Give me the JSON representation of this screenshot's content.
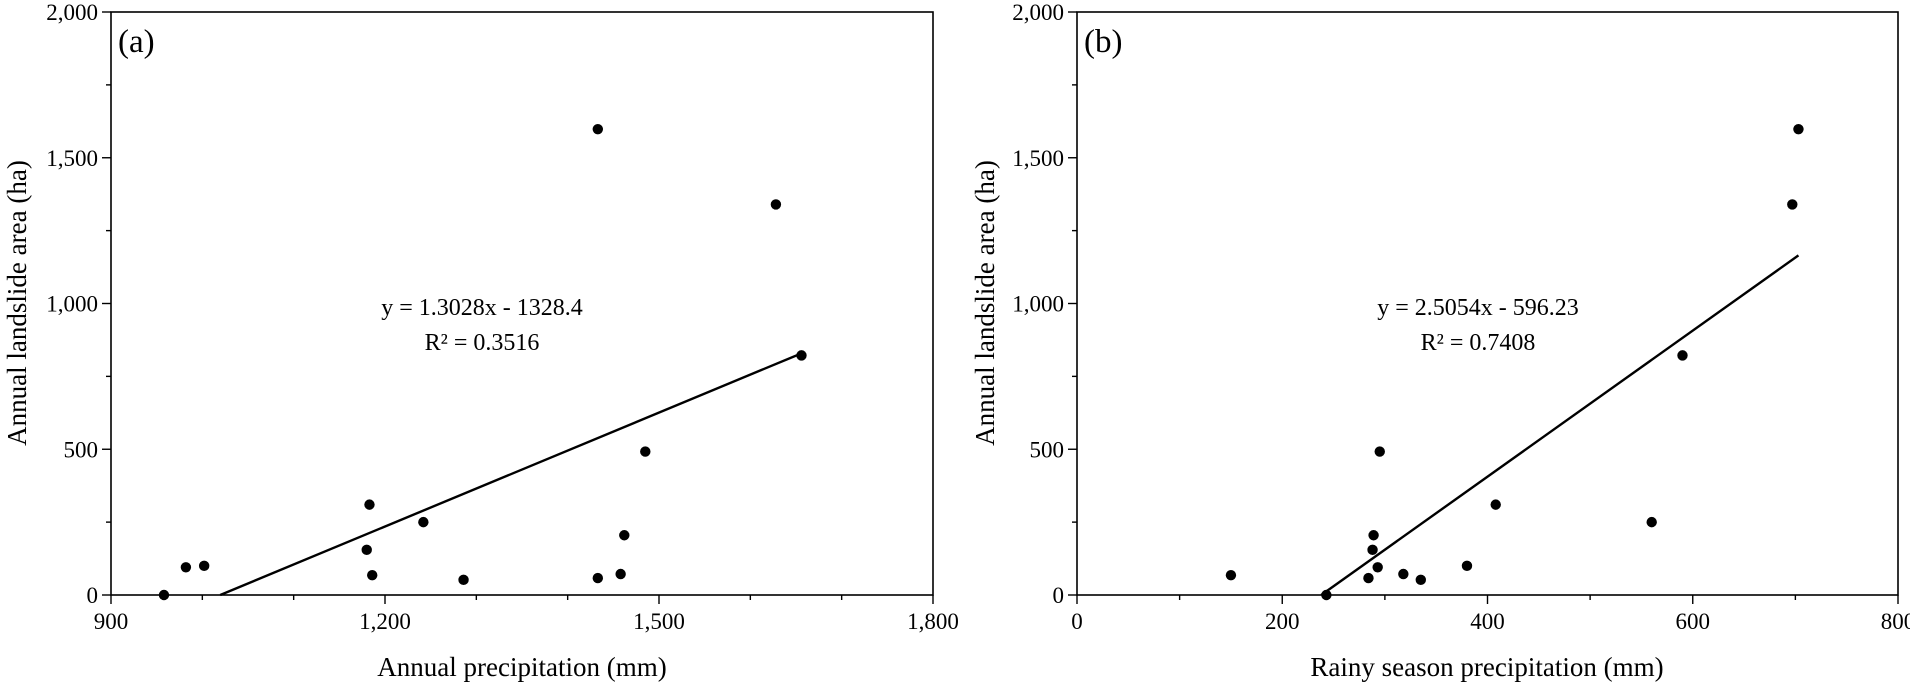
{
  "chart_data": [
    {
      "type": "scatter",
      "panel_label": "(a)",
      "xlabel": "Annual precipitation (mm)",
      "ylabel": "Annual landslide area (ha)",
      "xlim": [
        900,
        1800
      ],
      "ylim": [
        0,
        2000
      ],
      "x_ticks": [
        900,
        1200,
        1500,
        1800
      ],
      "x_tick_labels": [
        "900",
        "1,200",
        "1,500",
        "1,800"
      ],
      "x_minor_step": 100,
      "y_ticks": [
        0,
        500,
        1000,
        1500,
        2000
      ],
      "y_tick_labels": [
        "0",
        "500",
        "1,000",
        "1,500",
        "2,000"
      ],
      "points": [
        {
          "x": 958,
          "y": 0
        },
        {
          "x": 982,
          "y": 95
        },
        {
          "x": 1002,
          "y": 100
        },
        {
          "x": 1183,
          "y": 310
        },
        {
          "x": 1180,
          "y": 155
        },
        {
          "x": 1186,
          "y": 68
        },
        {
          "x": 1242,
          "y": 250
        },
        {
          "x": 1286,
          "y": 52
        },
        {
          "x": 1433,
          "y": 1598
        },
        {
          "x": 1433,
          "y": 58
        },
        {
          "x": 1458,
          "y": 72
        },
        {
          "x": 1462,
          "y": 205
        },
        {
          "x": 1485,
          "y": 492
        },
        {
          "x": 1628,
          "y": 1340
        },
        {
          "x": 1656,
          "y": 822
        }
      ],
      "trendline": {
        "slope": 1.3028,
        "intercept": -1328.4,
        "x_range": [
          1019.6,
          1656
        ]
      },
      "equation_text": "y = 1.3028x - 1328.4",
      "r2_text": "R² = 0.3516"
    },
    {
      "type": "scatter",
      "panel_label": "(b)",
      "xlabel": "Rainy season precipitation (mm)",
      "ylabel": "Annual landslide area (ha)",
      "xlim": [
        0,
        800
      ],
      "ylim": [
        0,
        2000
      ],
      "x_ticks": [
        0,
        200,
        400,
        600,
        800
      ],
      "x_tick_labels": [
        "0",
        "200",
        "400",
        "600",
        "800"
      ],
      "x_minor_step": 100,
      "y_ticks": [
        0,
        500,
        1000,
        1500,
        2000
      ],
      "y_tick_labels": [
        "0",
        "500",
        "1,000",
        "1,500",
        "2,000"
      ],
      "points": [
        {
          "x": 150,
          "y": 68
        },
        {
          "x": 243,
          "y": 0
        },
        {
          "x": 284,
          "y": 58
        },
        {
          "x": 288,
          "y": 155
        },
        {
          "x": 289,
          "y": 205
        },
        {
          "x": 293,
          "y": 95
        },
        {
          "x": 295,
          "y": 492
        },
        {
          "x": 318,
          "y": 72
        },
        {
          "x": 335,
          "y": 52
        },
        {
          "x": 380,
          "y": 100
        },
        {
          "x": 408,
          "y": 310
        },
        {
          "x": 560,
          "y": 250
        },
        {
          "x": 590,
          "y": 822
        },
        {
          "x": 697,
          "y": 1340
        },
        {
          "x": 703,
          "y": 1598
        }
      ],
      "trendline": {
        "slope": 2.5054,
        "intercept": -596.23,
        "x_range": [
          238,
          703
        ]
      },
      "equation_text": "y = 2.5054x - 596.23",
      "r2_text": "R² = 0.7408"
    }
  ]
}
